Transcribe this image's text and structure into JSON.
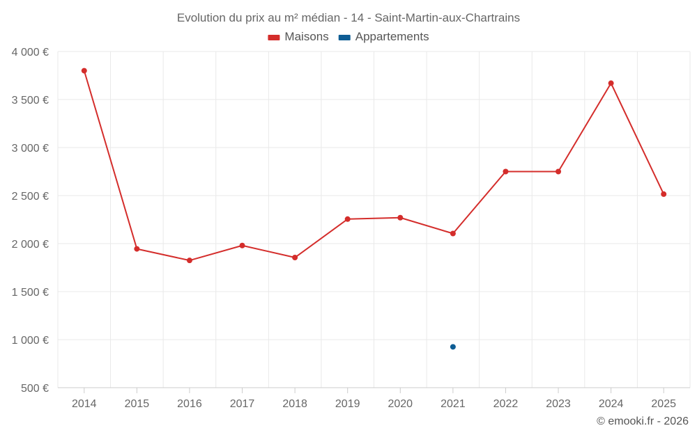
{
  "chart_data": {
    "type": "line",
    "title": "Evolution du prix au m² médian - 14 - Saint-Martin-aux-Chartrains",
    "categories": [
      "2014",
      "2015",
      "2016",
      "2017",
      "2018",
      "2019",
      "2020",
      "2021",
      "2022",
      "2023",
      "2024",
      "2025"
    ],
    "series": [
      {
        "name": "Maisons",
        "color": "#d42d2b",
        "values": [
          3800,
          1945,
          1825,
          1980,
          1855,
          2255,
          2270,
          2105,
          2750,
          2750,
          3670,
          2515
        ]
      },
      {
        "name": "Appartements",
        "color": "#0e5d94",
        "values": [
          null,
          null,
          null,
          null,
          null,
          null,
          null,
          925,
          null,
          null,
          null,
          null
        ]
      }
    ],
    "yticks": [
      "500 €",
      "1 000 €",
      "1 500 €",
      "2 000 €",
      "2 500 €",
      "3 000 €",
      "3 500 €",
      "4 000 €"
    ],
    "ytick_values": [
      500,
      1000,
      1500,
      2000,
      2500,
      3000,
      3500,
      4000
    ],
    "ylim": [
      500,
      4000
    ],
    "xlabel": "",
    "ylabel": "",
    "legend_position": "top-center",
    "grid": true
  },
  "credit": "© emooki.fr - 2026"
}
